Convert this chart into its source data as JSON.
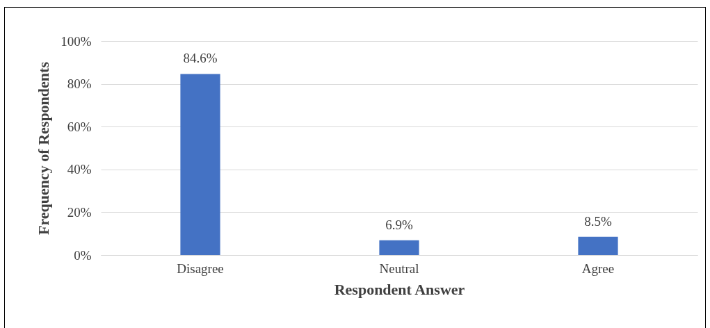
{
  "chart_data": {
    "type": "bar",
    "xlabel": "Respondent Answer",
    "ylabel": "Frequency of Respondents",
    "categories": [
      "Disagree",
      "Neutral",
      "Agree"
    ],
    "values": [
      84.6,
      6.9,
      8.5
    ],
    "value_labels": [
      "84.6%",
      "6.9%",
      "8.5%"
    ],
    "color": "#4472c4",
    "ylim": [
      0,
      100
    ],
    "yticks": [
      {
        "value": 0,
        "label": "0%"
      },
      {
        "value": 20,
        "label": "20%"
      },
      {
        "value": 40,
        "label": "40%"
      },
      {
        "value": 60,
        "label": "60%"
      },
      {
        "value": 80,
        "label": "80%"
      },
      {
        "value": 100,
        "label": "100%"
      }
    ],
    "grid": "y"
  }
}
